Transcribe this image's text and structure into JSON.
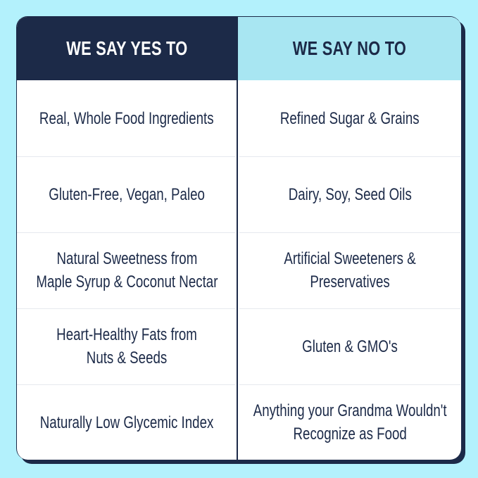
{
  "colors": {
    "background": "#b3f1fc",
    "navy": "#1c2a48",
    "light_header": "#a8e6f2"
  },
  "headers": {
    "yes": "WE SAY YES TO",
    "no": "WE SAY NO TO"
  },
  "rows": [
    {
      "yes": [
        "Real, Whole Food Ingredients"
      ],
      "no": [
        "Refined Sugar & Grains"
      ]
    },
    {
      "yes": [
        "Gluten-Free, Vegan, Paleo"
      ],
      "no": [
        "Dairy, Soy, Seed Oils"
      ]
    },
    {
      "yes": [
        "Natural Sweetness from",
        "Maple Syrup & Coconut Nectar"
      ],
      "no": [
        "Artificial Sweeteners &",
        "Preservatives"
      ]
    },
    {
      "yes": [
        "Heart-Healthy Fats from",
        "Nuts & Seeds"
      ],
      "no": [
        "Gluten & GMO's"
      ]
    },
    {
      "yes": [
        "Naturally Low Glycemic Index"
      ],
      "no": [
        "Anything your Grandma Wouldn't",
        "Recognize as Food"
      ]
    }
  ]
}
